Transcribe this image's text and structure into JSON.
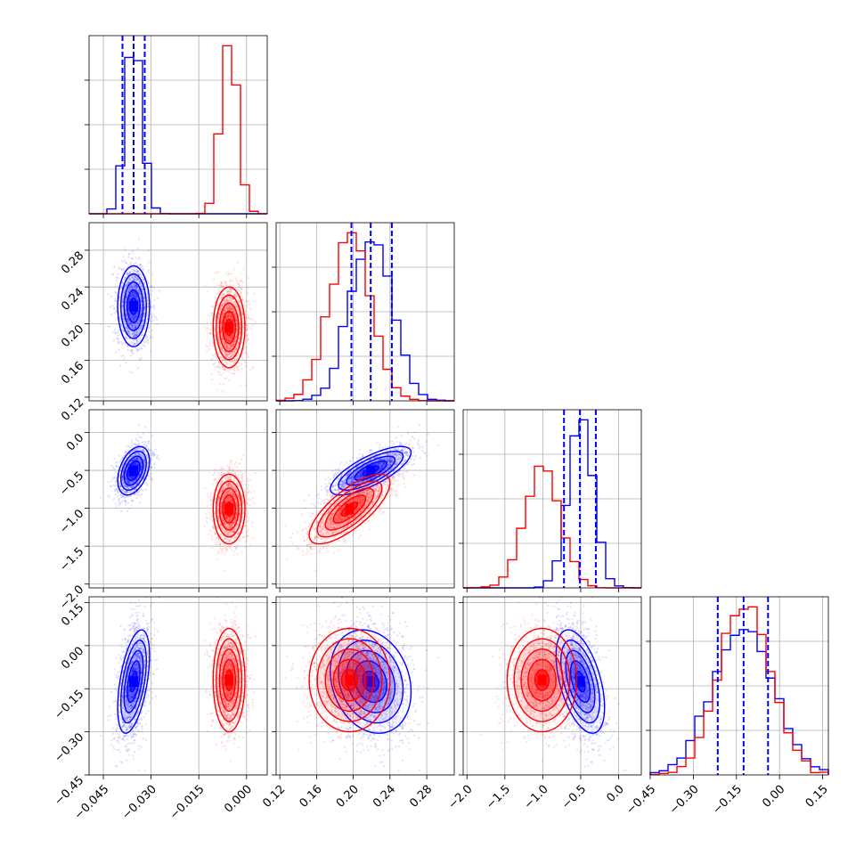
{
  "chart_data": {
    "type": "corner",
    "title": "",
    "grid": true,
    "colors": {
      "series_a": "#0000ff",
      "series_b": "#ff0000"
    },
    "series": [
      {
        "color": "#0000ff",
        "means": [
          -0.0355,
          0.219,
          -0.505,
          -0.125
        ],
        "sds": [
          0.0025,
          0.022,
          0.16,
          0.09
        ],
        "correlations": [
          [
            0,
            1,
            0.0
          ],
          [
            0,
            2,
            0.4
          ],
          [
            0,
            3,
            0.5
          ],
          [
            1,
            2,
            0.75
          ],
          [
            1,
            3,
            -0.2
          ],
          [
            2,
            3,
            -0.5
          ]
        ],
        "quantile_lines": [
          [
            -0.039,
            -0.0355,
            -0.032
          ],
          [
            0.198,
            0.219,
            0.242
          ],
          [
            -0.72,
            -0.51,
            -0.3
          ],
          [
            -0.215,
            -0.125,
            -0.04
          ]
        ]
      },
      {
        "color": "#ff0000",
        "means": [
          -0.0055,
          0.196,
          -1.01,
          -0.12
        ],
        "sds": [
          0.0025,
          0.022,
          0.23,
          0.09
        ],
        "correlations": [
          [
            0,
            1,
            0.0
          ],
          [
            0,
            2,
            0.0
          ],
          [
            0,
            3,
            0.0
          ],
          [
            1,
            2,
            0.75
          ],
          [
            1,
            3,
            0.0
          ],
          [
            2,
            3,
            0.0
          ]
        ],
        "quantile_lines": []
      }
    ],
    "params": [
      {
        "range": [
          -0.0495,
          0.0065
        ],
        "ticks": [
          -0.045,
          -0.03,
          -0.015,
          0.0
        ],
        "tick_labels": [
          "−0.045",
          "−0.030",
          "−0.015",
          "0.000"
        ]
      },
      {
        "range": [
          0.116,
          0.31
        ],
        "ticks": [
          0.12,
          0.16,
          0.2,
          0.24,
          0.28
        ],
        "tick_labels": [
          "0.12",
          "0.16",
          "0.20",
          "0.24",
          "0.28"
        ]
      },
      {
        "range": [
          -2.05,
          0.3
        ],
        "ticks": [
          -2.0,
          -1.5,
          -1.0,
          -0.5,
          0.0
        ],
        "tick_labels": [
          "−2.0",
          "−1.5",
          "−1.0",
          "−0.5",
          "0.0"
        ]
      },
      {
        "range": [
          -0.45,
          0.17
        ],
        "ticks": [
          -0.45,
          -0.3,
          -0.15,
          0.0,
          0.15
        ],
        "tick_labels": [
          "−0.45",
          "−0.30",
          "−0.15",
          "0.00",
          "0.15"
        ]
      }
    ]
  }
}
